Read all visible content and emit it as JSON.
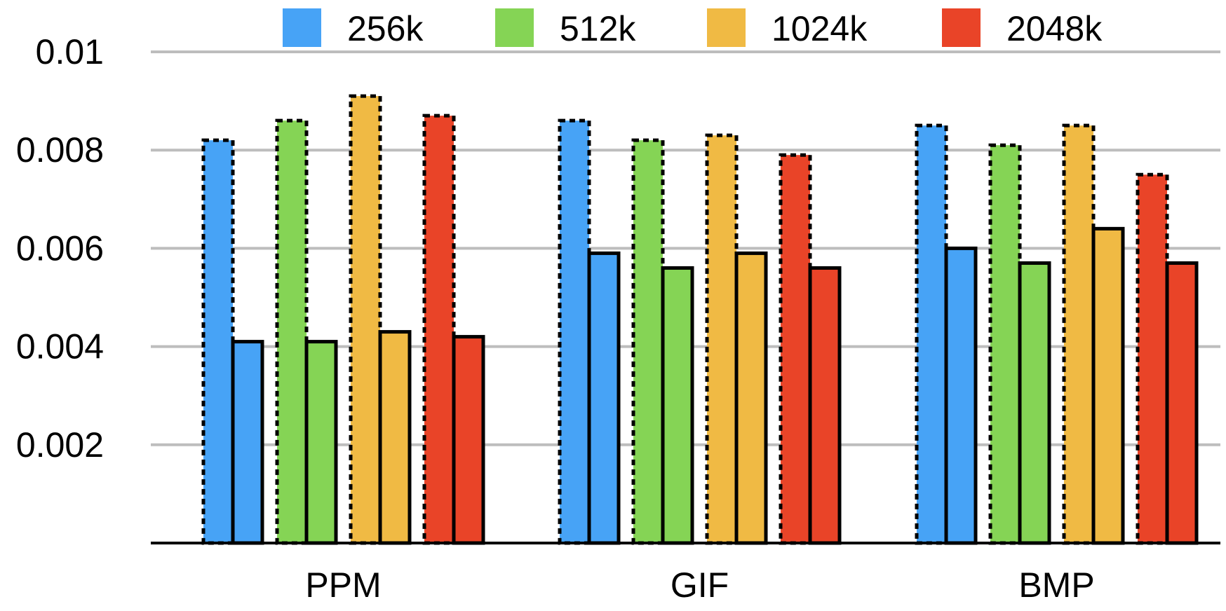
{
  "chart_data": {
    "type": "bar",
    "categories": [
      "PPM",
      "GIF",
      "BMP"
    ],
    "ylim": [
      0,
      0.01
    ],
    "yticks": [
      0.002,
      0.004,
      0.006,
      0.008,
      0.01
    ],
    "ytick_labels": [
      "0.002",
      "0.004",
      "0.006",
      "0.008",
      "0.01"
    ],
    "grid": true,
    "legend_position": "top",
    "bar_styles": [
      "dashed outline",
      "solid outline"
    ],
    "series": [
      {
        "name": "256k",
        "color": "#47A3F6",
        "values": [
          [
            0.0082,
            0.0041
          ],
          [
            0.0086,
            0.0059
          ],
          [
            0.0085,
            0.006
          ]
        ]
      },
      {
        "name": "512k",
        "color": "#85D455",
        "values": [
          [
            0.0086,
            0.0041
          ],
          [
            0.0082,
            0.0056
          ],
          [
            0.0081,
            0.0057
          ]
        ]
      },
      {
        "name": "1024k",
        "color": "#F0BA44",
        "values": [
          [
            0.0091,
            0.0043
          ],
          [
            0.0083,
            0.0059
          ],
          [
            0.0085,
            0.0064
          ]
        ]
      },
      {
        "name": "2048k",
        "color": "#E94428",
        "values": [
          [
            0.0087,
            0.0042
          ],
          [
            0.0079,
            0.0056
          ],
          [
            0.0075,
            0.0057
          ]
        ]
      }
    ]
  }
}
